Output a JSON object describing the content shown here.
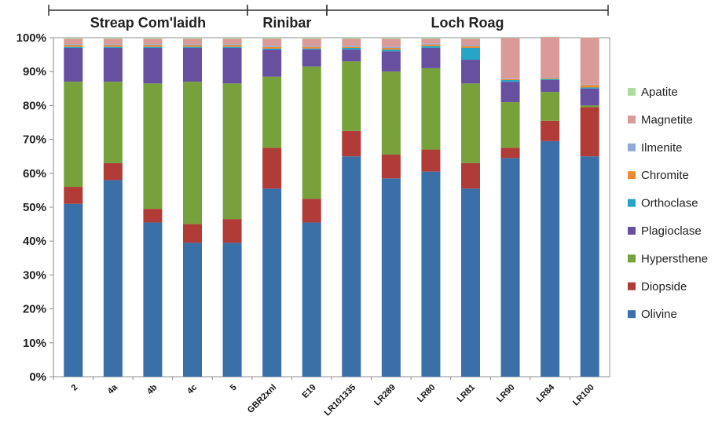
{
  "chart_data": {
    "type": "bar",
    "stacked": true,
    "categories": [
      "2",
      "4a",
      "4b",
      "4c",
      "5",
      "GBR2xnl",
      "E19",
      "LR101335",
      "LR289",
      "LR80",
      "LR81",
      "LR90",
      "LR84",
      "LR100"
    ],
    "groups": [
      {
        "label": "Streap Com'laidh",
        "start": 0,
        "end": 4
      },
      {
        "label": "Rinibar",
        "start": 5,
        "end": 6
      },
      {
        "label": "Loch Roag",
        "start": 7,
        "end": 13
      }
    ],
    "ylim": [
      0,
      100
    ],
    "yticks": [
      "0%",
      "10%",
      "20%",
      "30%",
      "40%",
      "50%",
      "60%",
      "70%",
      "80%",
      "90%",
      "100%"
    ],
    "grid": false,
    "legend_position": "right",
    "series": [
      {
        "name": "Olivine",
        "color": "#3a6fa8",
        "values": [
          51,
          58,
          45.5,
          39.5,
          39.5,
          55.5,
          45.5,
          65,
          58.5,
          60.5,
          55.5,
          64.5,
          69.5,
          65
        ]
      },
      {
        "name": "Diopside",
        "color": "#b03b37",
        "values": [
          5,
          5,
          4,
          5.5,
          7,
          12,
          7,
          7.5,
          7,
          6.5,
          7.5,
          3,
          6,
          14.5
        ]
      },
      {
        "name": "Hypersthene",
        "color": "#77a13b",
        "values": [
          31,
          24,
          37,
          42,
          40,
          21,
          39,
          20.5,
          24.5,
          24,
          23.5,
          13.5,
          8.5,
          0.5
        ]
      },
      {
        "name": "Plagioclase",
        "color": "#6750a0",
        "values": [
          10,
          10,
          10.5,
          10,
          10.5,
          8,
          5,
          3.5,
          6,
          6,
          7,
          6,
          3.5,
          5
        ]
      },
      {
        "name": "Orthoclase",
        "color": "#26a5c4",
        "values": [
          0.3,
          0.3,
          0.3,
          0.3,
          0.3,
          0.3,
          0.3,
          0.5,
          0.5,
          0.5,
          3.5,
          0.5,
          0.3,
          0.3
        ]
      },
      {
        "name": "Chromite",
        "color": "#f08a2e",
        "values": [
          0.5,
          0.5,
          0.5,
          0.5,
          0.5,
          0.5,
          0.5,
          0.3,
          0.5,
          0.5,
          0.5,
          0.3,
          0.3,
          0.7
        ]
      },
      {
        "name": "Ilmenite",
        "color": "#8faad8",
        "values": [
          0.3,
          0.3,
          0.3,
          0.3,
          0.3,
          0.3,
          0.3,
          0.3,
          0.3,
          0.3,
          0.3,
          0.2,
          0.2,
          0.2
        ]
      },
      {
        "name": "Magnetite",
        "color": "#d99a98",
        "values": [
          1.6,
          1.6,
          1.6,
          1.6,
          1.6,
          2.1,
          2.1,
          2.1,
          2.4,
          1.4,
          1.9,
          11.9,
          11.9,
          13.8
        ]
      },
      {
        "name": "Apatite",
        "color": "#aedc9e",
        "values": [
          0.3,
          0.3,
          0.3,
          0.3,
          0.3,
          0.3,
          0.3,
          0.3,
          0.3,
          0.3,
          0.3,
          0.1,
          0.1,
          0.1
        ]
      }
    ]
  }
}
